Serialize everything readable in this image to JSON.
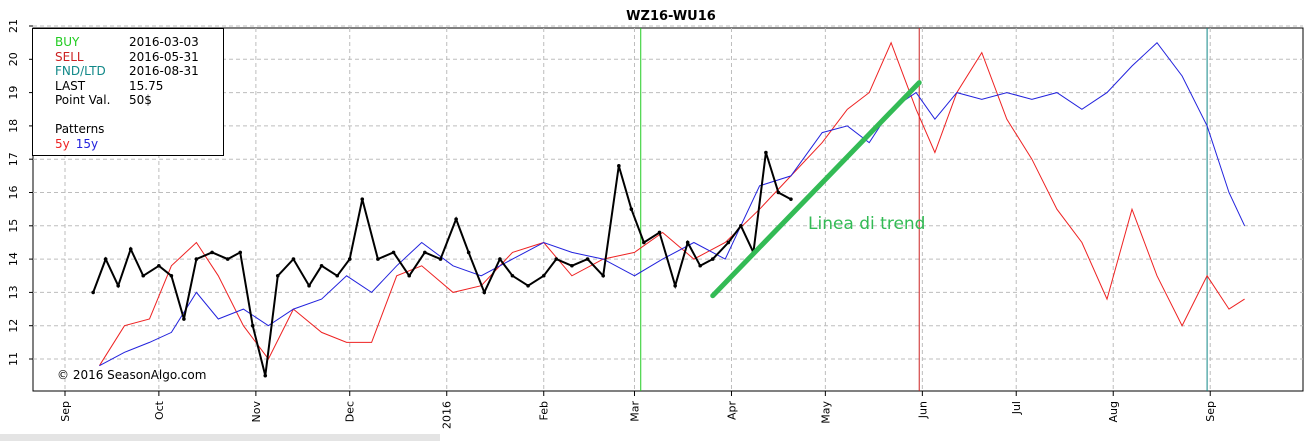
{
  "chart_data": {
    "type": "line",
    "title": "WZ16-WU16",
    "ylim": [
      10.5,
      21
    ],
    "yticks": [
      "11",
      "12",
      "13",
      "14",
      "15",
      "16",
      "17",
      "18",
      "19",
      "20",
      "21"
    ],
    "xticks": [
      "Sep",
      "Oct",
      "Nov",
      "Dec",
      "2016",
      "Feb",
      "Mar",
      "Apr",
      "May",
      "Jun",
      "Jul",
      "Aug",
      "Sep"
    ],
    "grid": true,
    "vertical_lines": [
      {
        "label": "BUY",
        "date": "2016-03-03",
        "color": "#22cc22"
      },
      {
        "label": "SELL",
        "date": "2016-05-31",
        "color": "#cc2222"
      },
      {
        "label": "FND/LTD",
        "date": "2016-08-31",
        "color": "#118888"
      }
    ],
    "series": [
      {
        "name": "5y",
        "color": "#ee2222",
        "x": [
          "2015-09-12",
          "2015-09-20",
          "2015-09-28",
          "2015-10-05",
          "2015-10-13",
          "2015-10-20",
          "2015-10-28",
          "2015-11-05",
          "2015-11-13",
          "2015-11-22",
          "2015-11-30",
          "2015-12-08",
          "2015-12-16",
          "2015-12-24",
          "2016-01-03",
          "2016-01-12",
          "2016-01-22",
          "2016-02-01",
          "2016-02-10",
          "2016-02-20",
          "2016-03-01",
          "2016-03-10",
          "2016-03-20",
          "2016-03-30",
          "2016-04-10",
          "2016-04-20",
          "2016-04-30",
          "2016-05-08",
          "2016-05-15",
          "2016-05-22",
          "2016-05-30",
          "2016-06-05",
          "2016-06-12",
          "2016-06-20",
          "2016-06-28",
          "2016-07-06",
          "2016-07-14",
          "2016-07-22",
          "2016-07-30",
          "2016-08-07",
          "2016-08-15",
          "2016-08-23",
          "2016-08-31",
          "2016-09-07",
          "2016-09-12"
        ],
        "y": [
          10.8,
          12.0,
          12.2,
          13.8,
          14.5,
          13.5,
          12.0,
          11.0,
          12.5,
          11.8,
          11.5,
          11.5,
          13.5,
          13.8,
          13.0,
          13.2,
          14.2,
          14.5,
          13.5,
          14.0,
          14.2,
          14.8,
          14.0,
          14.5,
          15.5,
          16.5,
          17.5,
          18.5,
          19.0,
          20.5,
          18.5,
          17.2,
          19.0,
          20.2,
          18.2,
          17.0,
          15.5,
          14.5,
          12.8,
          15.5,
          13.5,
          12.0,
          13.5,
          12.5,
          12.8
        ]
      },
      {
        "name": "15y",
        "color": "#2222dd",
        "x": [
          "2015-09-12",
          "2015-09-20",
          "2015-09-28",
          "2015-10-05",
          "2015-10-13",
          "2015-10-20",
          "2015-10-28",
          "2015-11-05",
          "2015-11-13",
          "2015-11-22",
          "2015-11-30",
          "2015-12-08",
          "2015-12-16",
          "2015-12-24",
          "2016-01-03",
          "2016-01-12",
          "2016-01-22",
          "2016-02-01",
          "2016-02-10",
          "2016-02-20",
          "2016-03-01",
          "2016-03-10",
          "2016-03-20",
          "2016-03-30",
          "2016-04-10",
          "2016-04-20",
          "2016-04-30",
          "2016-05-08",
          "2016-05-15",
          "2016-05-22",
          "2016-05-30",
          "2016-06-05",
          "2016-06-12",
          "2016-06-20",
          "2016-06-28",
          "2016-07-06",
          "2016-07-14",
          "2016-07-22",
          "2016-07-30",
          "2016-08-07",
          "2016-08-15",
          "2016-08-23",
          "2016-08-31",
          "2016-09-07",
          "2016-09-12"
        ],
        "y": [
          10.8,
          11.2,
          11.5,
          11.8,
          13.0,
          12.2,
          12.5,
          12.0,
          12.5,
          12.8,
          13.5,
          13.0,
          13.8,
          14.5,
          13.8,
          13.5,
          14.0,
          14.5,
          14.2,
          14.0,
          13.5,
          14.0,
          14.5,
          14.0,
          16.2,
          16.5,
          17.8,
          18.0,
          17.5,
          18.5,
          19.0,
          18.2,
          19.0,
          18.8,
          19.0,
          18.8,
          19.0,
          18.5,
          19.0,
          19.8,
          20.5,
          19.5,
          18.0,
          16.0,
          15.0
        ]
      },
      {
        "name": "WZ16-WU16",
        "color": "#000000",
        "x": [
          "2015-09-10",
          "2015-09-14",
          "2015-09-18",
          "2015-09-22",
          "2015-09-26",
          "2015-10-01",
          "2015-10-05",
          "2015-10-09",
          "2015-10-13",
          "2015-10-18",
          "2015-10-23",
          "2015-10-27",
          "2015-10-31",
          "2015-11-04",
          "2015-11-08",
          "2015-11-13",
          "2015-11-18",
          "2015-11-22",
          "2015-11-27",
          "2015-12-01",
          "2015-12-05",
          "2015-12-10",
          "2015-12-15",
          "2015-12-20",
          "2015-12-25",
          "2015-12-30",
          "2016-01-04",
          "2016-01-08",
          "2016-01-13",
          "2016-01-18",
          "2016-01-22",
          "2016-01-27",
          "2016-02-01",
          "2016-02-05",
          "2016-02-10",
          "2016-02-15",
          "2016-02-20",
          "2016-02-25",
          "2016-02-29",
          "2016-03-04",
          "2016-03-09",
          "2016-03-14",
          "2016-03-18",
          "2016-03-22",
          "2016-03-26",
          "2016-03-31",
          "2016-04-04",
          "2016-04-08",
          "2016-04-12",
          "2016-04-16",
          "2016-04-20"
        ],
        "y": [
          13.0,
          14.0,
          13.2,
          14.3,
          13.5,
          13.8,
          13.5,
          12.2,
          14.0,
          14.2,
          14.0,
          14.2,
          12.0,
          10.5,
          13.5,
          14.0,
          13.2,
          13.8,
          13.5,
          14.0,
          15.8,
          14.0,
          14.2,
          13.5,
          14.2,
          14.0,
          15.2,
          14.2,
          13.0,
          14.0,
          13.5,
          13.2,
          13.5,
          14.0,
          13.8,
          14.0,
          13.5,
          16.8,
          15.5,
          14.5,
          14.8,
          13.2,
          14.5,
          13.8,
          14.0,
          14.5,
          15.0,
          14.2,
          17.2,
          16.0,
          15.8
        ]
      }
    ],
    "annotation": {
      "text": "Linea di trend",
      "color": "#33bb55",
      "from": {
        "x": "2016-03-26",
        "y": 12.9
      },
      "to": {
        "x": "2016-05-31",
        "y": 19.3
      }
    }
  },
  "legend": {
    "rows": [
      {
        "key": "BUY",
        "value": "2016-03-03",
        "color": "#22cc22"
      },
      {
        "key": "SELL",
        "value": "2016-05-31",
        "color": "#cc2222"
      },
      {
        "key": "FND/LTD",
        "value": "2016-08-31",
        "color": "#118888"
      },
      {
        "key": "LAST",
        "value": "15.75",
        "color": "#000000"
      },
      {
        "key": "Point Val.",
        "value": "50$",
        "color": "#000000"
      }
    ],
    "patterns_label": "Patterns",
    "pattern_5y": "5y",
    "pattern_15y": "15y"
  },
  "copyright": "© 2016 SeasonAlgo.com"
}
